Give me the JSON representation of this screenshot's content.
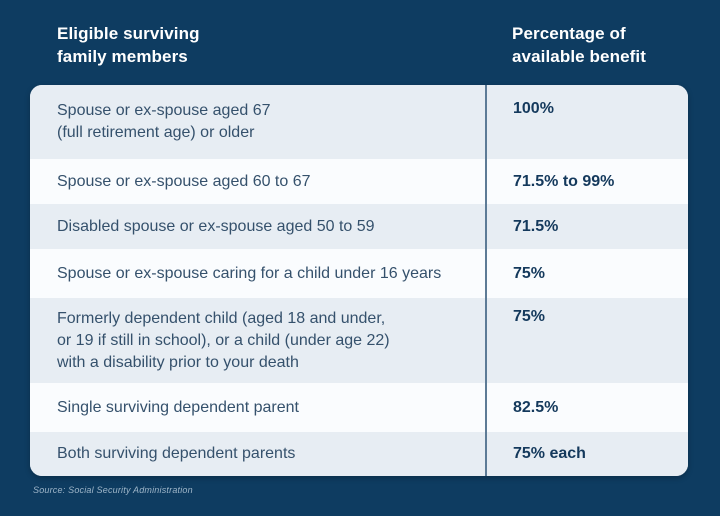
{
  "colors": {
    "background": "#0e3c61",
    "row_light": "#e7edf3",
    "row_white": "#fafcfe",
    "column_divider": "#5d7b96",
    "header_text": "#ffffff",
    "member_text": "#35516c",
    "benefit_text": "#14395c",
    "source_text": "#9fb6c9"
  },
  "header": {
    "members_label": "Eligible surviving\nfamily members",
    "benefit_label": "Percentage of\navailable benefit"
  },
  "table": {
    "rows": [
      {
        "member": "Spouse or ex-spouse aged 67\n(full retirement age) or older",
        "benefit": "100%"
      },
      {
        "member": "Spouse or ex-spouse aged 60 to 67",
        "benefit": "71.5% to 99%"
      },
      {
        "member": "Disabled spouse or ex-spouse aged 50 to 59",
        "benefit": "71.5%"
      },
      {
        "member": "Spouse or ex-spouse caring for a child under 16 years",
        "benefit": "75%"
      },
      {
        "member": "Formerly dependent child (aged 18 and under,\nor 19 if still in school), or a child (under age 22)\nwith a disability prior to your death",
        "benefit": "75%"
      },
      {
        "member": "Single surviving dependent parent",
        "benefit": "82.5%"
      },
      {
        "member": "Both surviving dependent parents",
        "benefit": "75% each"
      }
    ]
  },
  "footer": {
    "source": "Source: Social Security Administration"
  },
  "chart_data": {
    "type": "table",
    "title": "",
    "columns": [
      "Eligible surviving family members",
      "Percentage of available benefit"
    ],
    "rows": [
      [
        "Spouse or ex-spouse aged 67 (full retirement age) or older",
        "100%"
      ],
      [
        "Spouse or ex-spouse aged 60 to 67",
        "71.5% to 99%"
      ],
      [
        "Disabled spouse or ex-spouse aged 50 to 59",
        "71.5%"
      ],
      [
        "Spouse or ex-spouse caring for a child under 16 years",
        "75%"
      ],
      [
        "Formerly dependent child (aged 18 and under, or 19 if still in school), or a child (under age 22) with a disability prior to your death",
        "75%"
      ],
      [
        "Single surviving dependent parent",
        "82.5%"
      ],
      [
        "Both surviving dependent parents",
        "75% each"
      ]
    ],
    "source": "Social Security Administration"
  }
}
